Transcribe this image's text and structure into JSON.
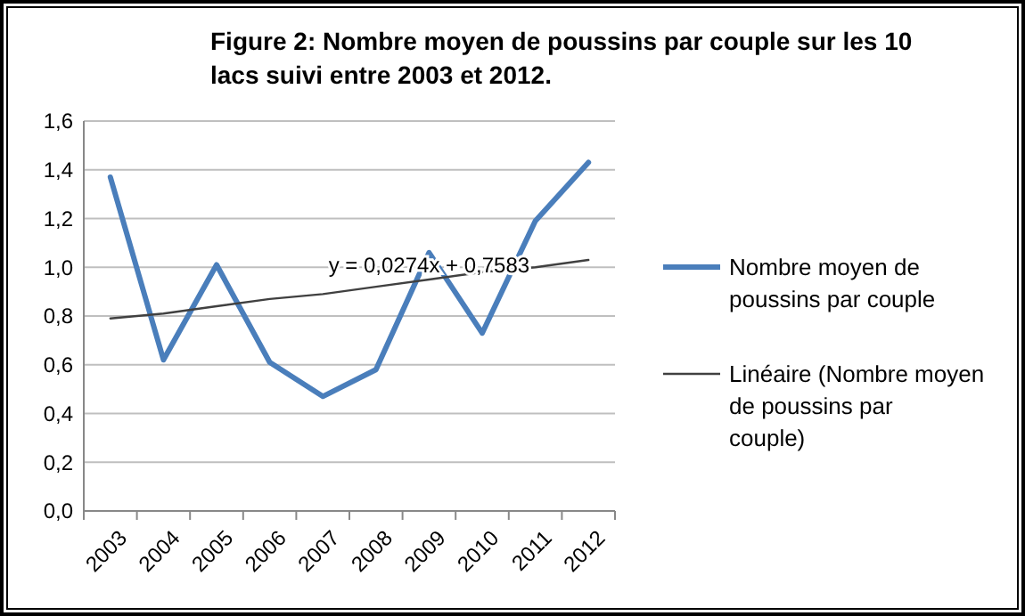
{
  "chart_data": {
    "type": "line",
    "title": "Figure 2: Nombre moyen de poussins par couple sur les 10 lacs suivi entre 2003 et 2012.",
    "categories": [
      "2003",
      "2004",
      "2005",
      "2006",
      "2007",
      "2008",
      "2009",
      "2010",
      "2011",
      "2012"
    ],
    "series": [
      {
        "name": "Nombre moyen de poussins par couple",
        "color": "#4a7ebb",
        "values": [
          1.37,
          0.62,
          1.01,
          0.61,
          0.47,
          0.58,
          1.06,
          0.73,
          1.19,
          1.43
        ]
      },
      {
        "name": "Linéaire (Nombre moyen de poussins par couple)",
        "color": "#404040",
        "values": [
          0.79,
          0.81,
          0.84,
          0.87,
          0.89,
          0.92,
          0.95,
          0.98,
          1.0,
          1.03
        ]
      }
    ],
    "ylim": [
      0,
      1.6
    ],
    "yticks": [
      {
        "value": 0,
        "label": "0,0"
      },
      {
        "value": 0.2,
        "label": "0,2"
      },
      {
        "value": 0.4,
        "label": "0,4"
      },
      {
        "value": 0.6,
        "label": "0,6"
      },
      {
        "value": 0.8,
        "label": "0,8"
      },
      {
        "value": 1,
        "label": "1,0"
      },
      {
        "value": 1.2,
        "label": "1,2"
      },
      {
        "value": 1.4,
        "label": "1,4"
      },
      {
        "value": 1.6,
        "label": "1,6"
      }
    ],
    "grid": "y",
    "legend": "right",
    "marker": "none",
    "line_style": "solid",
    "annotations": [
      "y = 0,0274x + 0,7583"
    ]
  }
}
